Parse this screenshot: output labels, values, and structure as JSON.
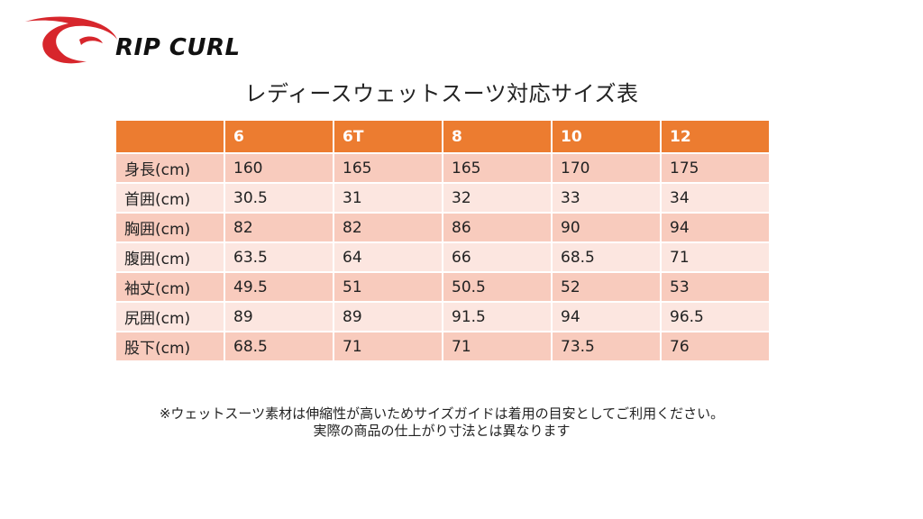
{
  "brand": {
    "name": "RIP CURL",
    "accent_color": "#d7262c"
  },
  "title": "レディースウェットスーツ対応サイズ表",
  "table": {
    "header_color": "#ec7c30",
    "row_dark_color": "#f8cbbd",
    "row_light_color": "#fce6e0",
    "headers": [
      "",
      "6",
      "6T",
      "8",
      "10",
      "12"
    ],
    "rows": [
      {
        "label": "身長(cm)",
        "values": [
          "160",
          "165",
          "165",
          "170",
          "175"
        ]
      },
      {
        "label": "首囲(cm)",
        "values": [
          "30.5",
          "31",
          "32",
          "33",
          "34"
        ]
      },
      {
        "label": "胸囲(cm)",
        "values": [
          "82",
          "82",
          "86",
          "90",
          "94"
        ]
      },
      {
        "label": "腹囲(cm)",
        "values": [
          "63.5",
          "64",
          "66",
          "68.5",
          "71"
        ]
      },
      {
        "label": "袖丈(cm)",
        "values": [
          "49.5",
          "51",
          "50.5",
          "52",
          "53"
        ]
      },
      {
        "label": "尻囲(cm)",
        "values": [
          "89",
          "89",
          "91.5",
          "94",
          "96.5"
        ]
      },
      {
        "label": "股下(cm)",
        "values": [
          "68.5",
          "71",
          "71",
          "73.5",
          "76"
        ]
      }
    ]
  },
  "note": {
    "line1": "※ウェットスーツ素材は伸縮性が高いためサイズガイドは着用の目安としてご利用ください。",
    "line2": "実際の商品の仕上がり寸法とは異なります"
  }
}
